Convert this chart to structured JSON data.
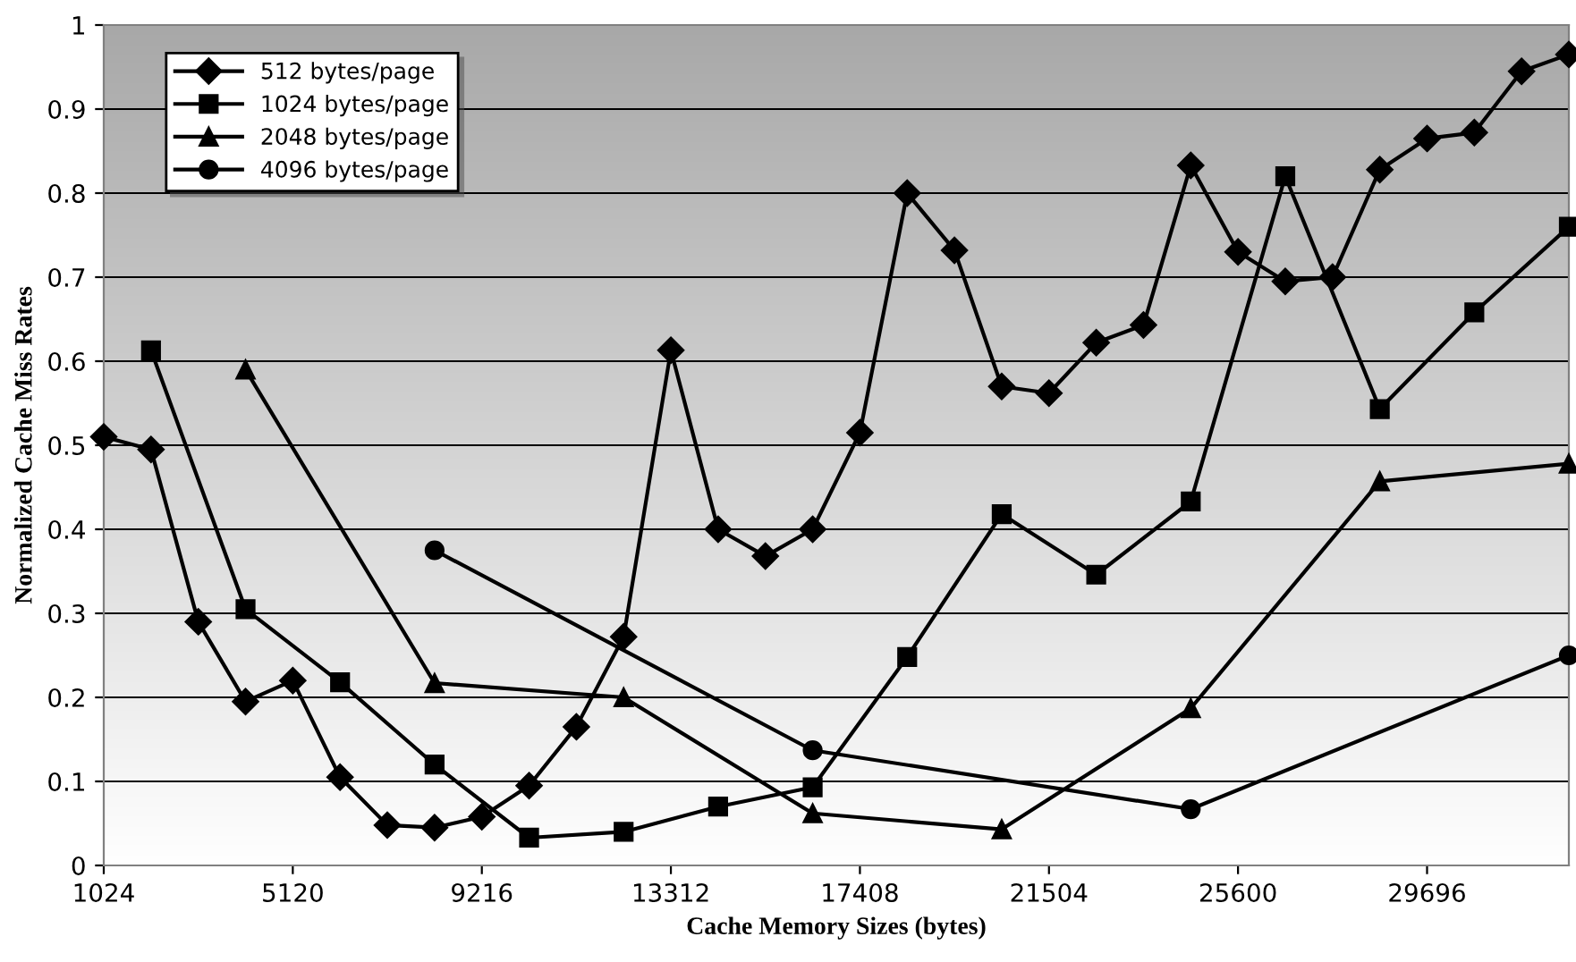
{
  "chart_data": {
    "type": "line",
    "xlabel": "Cache Memory Sizes (bytes)",
    "ylabel": "Normalized Cache Miss Rates",
    "xlim": [
      1024,
      32768
    ],
    "xticks": [
      1024,
      5120,
      9216,
      13312,
      17408,
      21504,
      25600,
      29696
    ],
    "ylim": [
      0,
      1
    ],
    "yticks": [
      0,
      0.1,
      0.2,
      0.3,
      0.4,
      0.5,
      0.6,
      0.7,
      0.8,
      0.9,
      1
    ],
    "grid": "y",
    "legend": "top left",
    "line_style": "solid",
    "series": [
      {
        "name": "512 bytes/page",
        "color": "#000000",
        "marker": "diamond",
        "x": [
          1024,
          2048,
          3072,
          4096,
          5120,
          6144,
          7168,
          8192,
          9216,
          10240,
          11264,
          12288,
          13312,
          14336,
          15360,
          16384,
          17408,
          18432,
          19456,
          20480,
          21504,
          22528,
          23552,
          24576,
          25600,
          26624,
          27648,
          28672,
          29696,
          30720,
          31744,
          32768
        ],
        "values": [
          0.51,
          0.495,
          0.29,
          0.195,
          0.22,
          0.105,
          0.048,
          0.045,
          0.058,
          0.095,
          0.165,
          0.272,
          0.613,
          0.4,
          0.368,
          0.4,
          0.515,
          0.8,
          0.732,
          0.57,
          0.562,
          0.622,
          0.643,
          0.833,
          0.73,
          0.695,
          0.7,
          0.828,
          0.865,
          0.872,
          0.945,
          0.965
        ]
      },
      {
        "name": "1024 bytes/page",
        "color": "#000000",
        "marker": "square",
        "x": [
          2048,
          4096,
          6144,
          8192,
          10240,
          12288,
          14336,
          16384,
          18432,
          20480,
          22528,
          24576,
          26624,
          28672,
          30720,
          32768
        ],
        "values": [
          0.613,
          0.305,
          0.218,
          0.12,
          0.033,
          0.04,
          0.07,
          0.093,
          0.248,
          0.418,
          0.346,
          0.433,
          0.82,
          0.543,
          0.658,
          0.76
        ]
      },
      {
        "name": "2048 bytes/page",
        "color": "#000000",
        "marker": "triangle",
        "x": [
          4096,
          8192,
          12288,
          16384,
          20480,
          24576,
          28672,
          32768
        ],
        "values": [
          0.59,
          0.217,
          0.2,
          0.062,
          0.043,
          0.187,
          0.457,
          0.478
        ]
      },
      {
        "name": "4096 bytes/page",
        "color": "#000000",
        "marker": "circle",
        "x": [
          8192,
          16384,
          24576,
          32768
        ],
        "values": [
          0.375,
          0.137,
          0.067,
          0.25
        ]
      }
    ]
  }
}
